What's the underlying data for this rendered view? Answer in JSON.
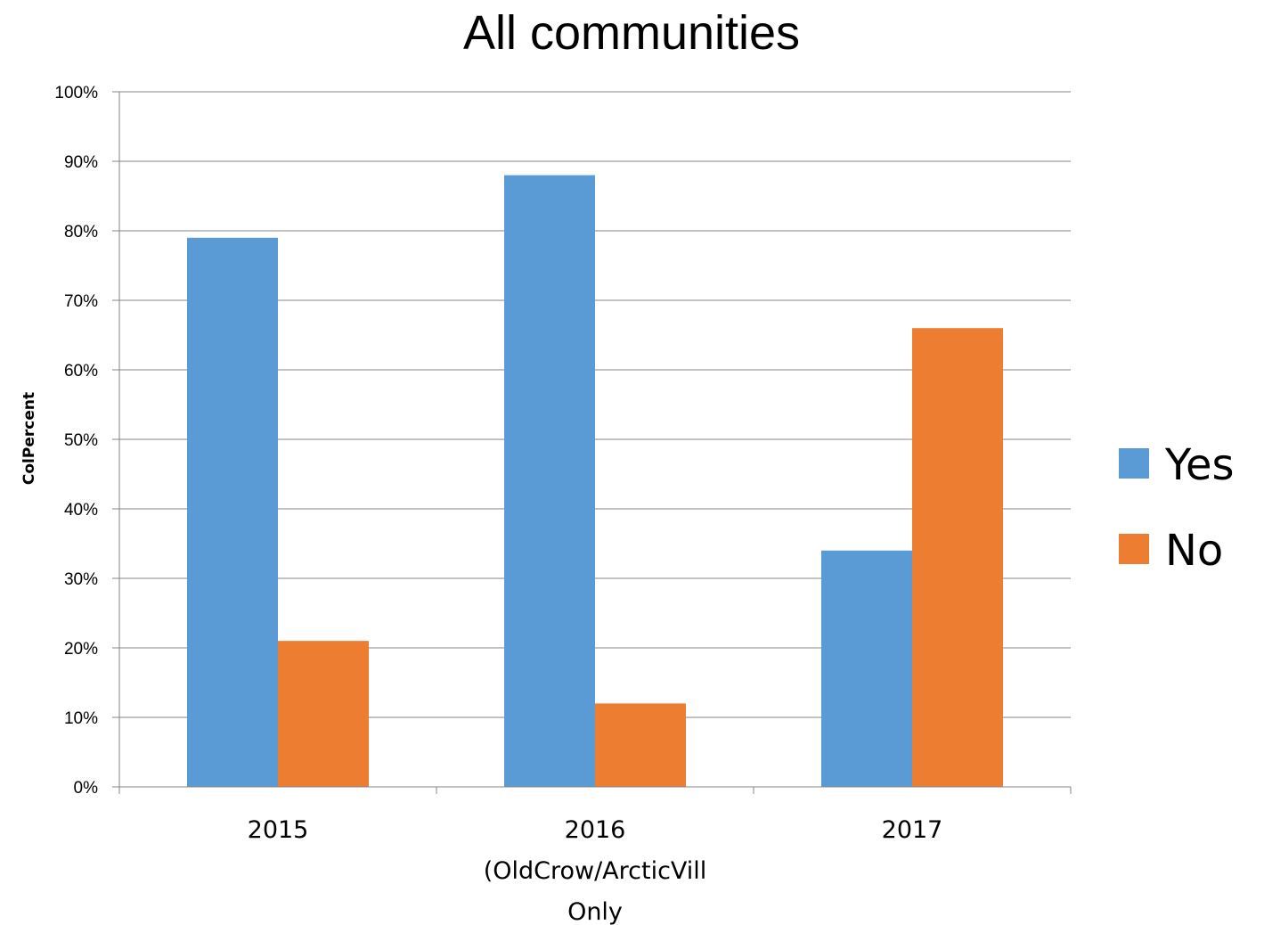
{
  "chart_data": {
    "type": "bar",
    "title": "All communities",
    "xlabel": "",
    "ylabel": "ColPercent",
    "categories": [
      [
        "2015"
      ],
      [
        "2016",
        "(OldCrow/ArcticVill",
        "Only"
      ],
      [
        "2017"
      ]
    ],
    "series": [
      {
        "name": "Yes",
        "color": "#5b9bd5",
        "values": [
          79,
          88,
          34
        ]
      },
      {
        "name": "No",
        "color": "#ed7d31",
        "values": [
          21,
          12,
          66
        ]
      }
    ],
    "ylim": [
      0,
      100
    ],
    "yticks": [
      "0%",
      "10%",
      "20%",
      "30%",
      "40%",
      "50%",
      "60%",
      "70%",
      "80%",
      "90%",
      "100%"
    ],
    "grid": true,
    "legend_position": "right"
  }
}
